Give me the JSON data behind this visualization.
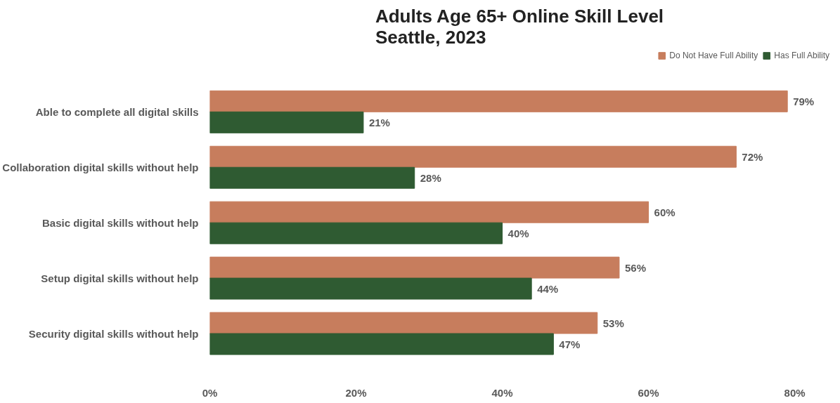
{
  "chart_data": {
    "type": "bar",
    "orientation": "horizontal",
    "title": "Adults Age 65+ Online Skill Level\nSeattle, 2023",
    "categories": [
      "Able to complete all digital skills",
      "Collaboration digital skills without help",
      "Basic digital skills without help",
      "Setup digital skills without help",
      "Security digital skills without help"
    ],
    "series": [
      {
        "name": "Do Not Have Full Ability",
        "color": "#c77d5d",
        "values": [
          79,
          72,
          60,
          56,
          53
        ],
        "value_labels": [
          "79%",
          "72%",
          "60%",
          "56%",
          "53%"
        ]
      },
      {
        "name": "Has Full Ability",
        "color": "#2f5b32",
        "values": [
          21,
          28,
          40,
          44,
          47
        ],
        "value_labels": [
          "21%",
          "28%",
          "40%",
          "44%",
          "47%"
        ]
      }
    ],
    "xlim": [
      0,
      80
    ],
    "xticks": [
      {
        "value": 0,
        "label": "0%"
      },
      {
        "value": 20,
        "label": "20%"
      },
      {
        "value": 40,
        "label": "40%"
      },
      {
        "value": 60,
        "label": "60%"
      },
      {
        "value": 80,
        "label": "80%"
      }
    ],
    "grid": false,
    "legend": "top right"
  }
}
